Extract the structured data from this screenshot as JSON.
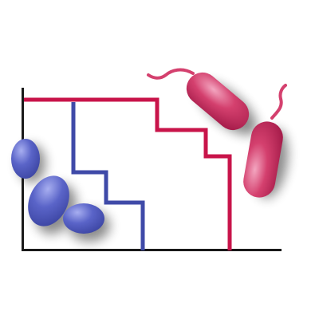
{
  "colors": {
    "background": "#ffffff",
    "axis": "#1a1a1a",
    "curve_red": "#c8144a",
    "curve_blue": "#3f4aa8",
    "bacterium_red": "#d4406e",
    "bacterium_red_highlight": "#f3a6c0",
    "bacterium_red_dark": "#a81e4c",
    "cocci_blue": "#5a64c8",
    "cocci_blue_highlight": "#a7aef0",
    "cocci_blue_dark": "#3a43a0",
    "shadow": "#000000"
  },
  "icons": {
    "red_organism": "rod-bacterium-icon",
    "blue_organism": "coccus-icon"
  }
}
